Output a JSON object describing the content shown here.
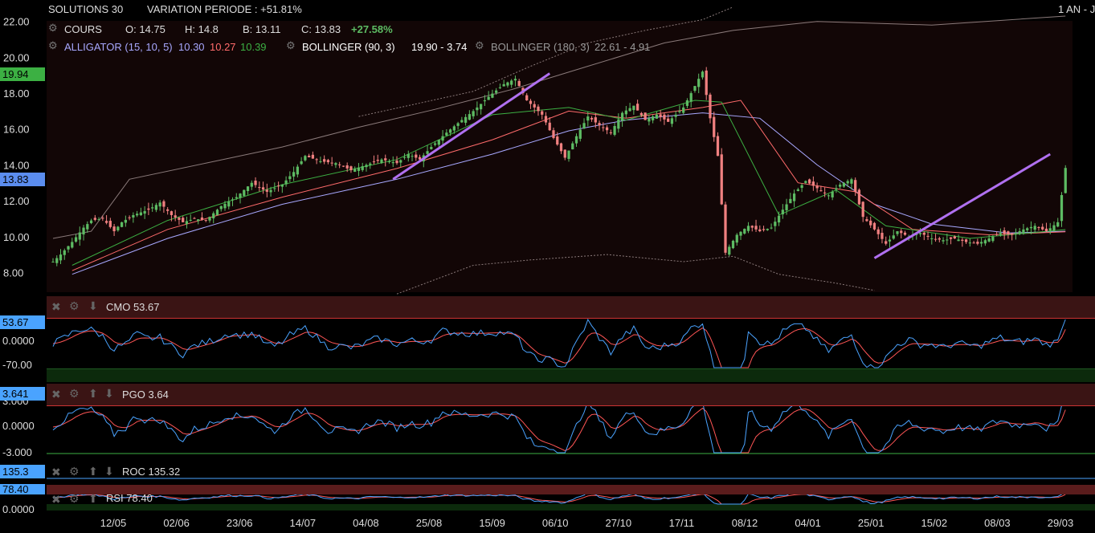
{
  "header": {
    "instrument": "SOLUTIONS 30",
    "variation": "VARIATION PERIODE : +51.81%",
    "period": "1 AN - J",
    "cours_label": "COURS",
    "open": "O: 14.75",
    "high": "H: 14.8",
    "low": "B: 13.11",
    "close": "C: 13.83",
    "change": "+27.58%",
    "alligator_label": "ALLIGATOR (15, 10, 5)",
    "alligator_v1": "10.30",
    "alligator_v2": "10.27",
    "alligator_v3": "10.39",
    "boll1_label": "BOLLINGER (90, 3)",
    "boll1_vals": "19.90 - 3.74",
    "boll2_label": "BOLLINGER (180, 3)",
    "boll2_vals": "22.61 - 4.91"
  },
  "price_labels": {
    "boll_upper": "19.94",
    "last": "13.83"
  },
  "panels": {
    "cmo": {
      "title": "CMO 53.67",
      "value_label": "53.67",
      "ticks": [
        "0.0000",
        "-70.00"
      ]
    },
    "pgo": {
      "title": "PGO 3.64",
      "value_label": "3.641",
      "ticks": [
        "3.000",
        "0.0000",
        "-3.000"
      ]
    },
    "roc": {
      "title": "ROC 135.32",
      "value_label": "135.3"
    },
    "rsi": {
      "title": "RSI 78.40",
      "value_label": "78.40",
      "ticks": [
        "0.0000"
      ]
    }
  },
  "colors": {
    "up": "#5dbb63",
    "down": "#f08080",
    "alligator_blue": "#a8a8ff",
    "alligator_red": "#ff6b6b",
    "alligator_green": "#3cb043",
    "trendline": "#b070f0",
    "cmo_line": "#4aa3ff",
    "signal": "#ff5555",
    "last_label": "#5b8def",
    "boll_label": "#3cb043"
  },
  "chart_data": {
    "type": "candlestick",
    "x_ticks": [
      "12/05",
      "02/06",
      "23/06",
      "14/07",
      "04/08",
      "25/08",
      "15/09",
      "06/10",
      "27/10",
      "17/11",
      "08/12",
      "04/01",
      "25/01",
      "15/02",
      "08/03",
      "29/03"
    ],
    "y_ticks": [
      8.0,
      10.0,
      12.0,
      14.0,
      16.0,
      18.0,
      20.0,
      22.0
    ],
    "ylim": [
      6.9,
      22.3
    ],
    "close_path": [
      [
        0,
        8.6
      ],
      [
        2,
        9.0
      ],
      [
        5,
        9.7
      ],
      [
        8,
        10.5
      ],
      [
        10,
        10.9
      ],
      [
        13,
        11.0
      ],
      [
        16,
        10.3
      ],
      [
        18,
        10.8
      ],
      [
        21,
        11.2
      ],
      [
        25,
        11.5
      ],
      [
        28,
        11.9
      ],
      [
        31,
        11.2
      ],
      [
        34,
        10.8
      ],
      [
        37,
        11.0
      ],
      [
        40,
        10.9
      ],
      [
        44,
        11.7
      ],
      [
        48,
        12.2
      ],
      [
        52,
        13.0
      ],
      [
        56,
        12.5
      ],
      [
        60,
        12.9
      ],
      [
        63,
        13.6
      ],
      [
        66,
        14.5
      ],
      [
        70,
        14.2
      ],
      [
        74,
        14.1
      ],
      [
        78,
        13.7
      ],
      [
        82,
        14.0
      ],
      [
        86,
        14.3
      ],
      [
        90,
        14.1
      ],
      [
        93,
        14.6
      ],
      [
        96,
        14.3
      ],
      [
        99,
        15.0
      ],
      [
        103,
        15.8
      ],
      [
        107,
        16.5
      ],
      [
        110,
        17.0
      ],
      [
        114,
        17.8
      ],
      [
        118,
        18.5
      ],
      [
        121,
        18.8
      ],
      [
        124,
        17.6
      ],
      [
        128,
        16.8
      ],
      [
        131,
        15.5
      ],
      [
        134,
        14.4
      ],
      [
        137,
        15.6
      ],
      [
        140,
        16.7
      ],
      [
        143,
        16.2
      ],
      [
        146,
        15.8
      ],
      [
        149,
        16.9
      ],
      [
        152,
        17.3
      ],
      [
        155,
        16.5
      ],
      [
        158,
        16.8
      ],
      [
        161,
        16.4
      ],
      [
        165,
        17.2
      ],
      [
        168,
        18.4
      ],
      [
        170,
        19.2
      ],
      [
        172,
        16.6
      ],
      [
        174,
        14.5
      ],
      [
        176,
        9.1
      ],
      [
        179,
        10.1
      ],
      [
        182,
        10.6
      ],
      [
        185,
        10.3
      ],
      [
        188,
        10.5
      ],
      [
        191,
        11.5
      ],
      [
        194,
        12.4
      ],
      [
        197,
        13.1
      ],
      [
        200,
        12.7
      ],
      [
        203,
        12.3
      ],
      [
        206,
        12.9
      ],
      [
        209,
        13.2
      ],
      [
        212,
        11.1
      ],
      [
        215,
        10.4
      ],
      [
        218,
        9.6
      ],
      [
        221,
        10.3
      ],
      [
        224,
        10.0
      ],
      [
        227,
        10.2
      ],
      [
        230,
        9.9
      ],
      [
        233,
        9.8
      ],
      [
        236,
        9.9
      ],
      [
        239,
        9.7
      ],
      [
        242,
        9.6
      ],
      [
        245,
        9.9
      ],
      [
        248,
        10.2
      ],
      [
        251,
        10.1
      ],
      [
        254,
        10.4
      ],
      [
        257,
        10.6
      ],
      [
        260,
        10.3
      ],
      [
        263,
        10.8
      ],
      [
        265,
        13.83
      ]
    ],
    "alligator": {
      "blue": [
        [
          5,
          7.9
        ],
        [
          30,
          9.9
        ],
        [
          60,
          11.8
        ],
        [
          90,
          13.2
        ],
        [
          115,
          14.6
        ],
        [
          135,
          15.9
        ],
        [
          150,
          16.5
        ],
        [
          170,
          16.9
        ],
        [
          185,
          16.6
        ],
        [
          200,
          14.0
        ],
        [
          215,
          11.8
        ],
        [
          230,
          10.7
        ],
        [
          250,
          10.2
        ],
        [
          265,
          10.3
        ]
      ],
      "red": [
        [
          5,
          8.1
        ],
        [
          30,
          10.4
        ],
        [
          60,
          12.2
        ],
        [
          90,
          13.8
        ],
        [
          115,
          15.4
        ],
        [
          135,
          17.0
        ],
        [
          150,
          16.6
        ],
        [
          170,
          17.2
        ],
        [
          180,
          17.6
        ],
        [
          195,
          13.0
        ],
        [
          210,
          12.5
        ],
        [
          225,
          10.4
        ],
        [
          245,
          10.1
        ],
        [
          265,
          10.27
        ]
      ],
      "green": [
        [
          5,
          8.4
        ],
        [
          30,
          10.9
        ],
        [
          60,
          12.9
        ],
        [
          90,
          14.3
        ],
        [
          115,
          16.8
        ],
        [
          135,
          17.2
        ],
        [
          150,
          16.5
        ],
        [
          168,
          17.6
        ],
        [
          175,
          17.5
        ],
        [
          190,
          11.2
        ],
        [
          205,
          12.6
        ],
        [
          218,
          10.6
        ],
        [
          240,
          9.9
        ],
        [
          265,
          10.39
        ]
      ]
    },
    "bollinger_90_3": {
      "upper": [
        [
          80,
          16.7
        ],
        [
          110,
          18.1
        ],
        [
          125,
          19.5
        ],
        [
          140,
          20.8
        ],
        [
          155,
          21.5
        ],
        [
          170,
          22.1
        ],
        [
          178,
          22.8
        ]
      ],
      "lower": [
        [
          90,
          6.8
        ],
        [
          110,
          8.4
        ],
        [
          125,
          8.7
        ],
        [
          145,
          9.0
        ],
        [
          165,
          8.6
        ],
        [
          178,
          8.9
        ],
        [
          190,
          7.9
        ],
        [
          205,
          7.4
        ],
        [
          215,
          7.0
        ]
      ]
    },
    "bollinger_180_3": {
      "upper": [
        [
          0,
          9.9
        ],
        [
          10,
          10.3
        ],
        [
          20,
          13.2
        ],
        [
          40,
          14.1
        ],
        [
          60,
          15.0
        ],
        [
          80,
          16.1
        ],
        [
          100,
          17.1
        ],
        [
          120,
          18.2
        ],
        [
          140,
          19.5
        ],
        [
          160,
          20.8
        ],
        [
          178,
          21.5
        ],
        [
          200,
          22.0
        ],
        [
          230,
          21.8
        ],
        [
          265,
          22.3
        ]
      ],
      "lower": []
    },
    "trendlines": [
      {
        "from": [
          89,
          13.2
        ],
        "to": [
          130,
          19.1
        ]
      },
      {
        "from": [
          215,
          8.8
        ],
        "to": [
          261,
          14.6
        ]
      }
    ]
  }
}
